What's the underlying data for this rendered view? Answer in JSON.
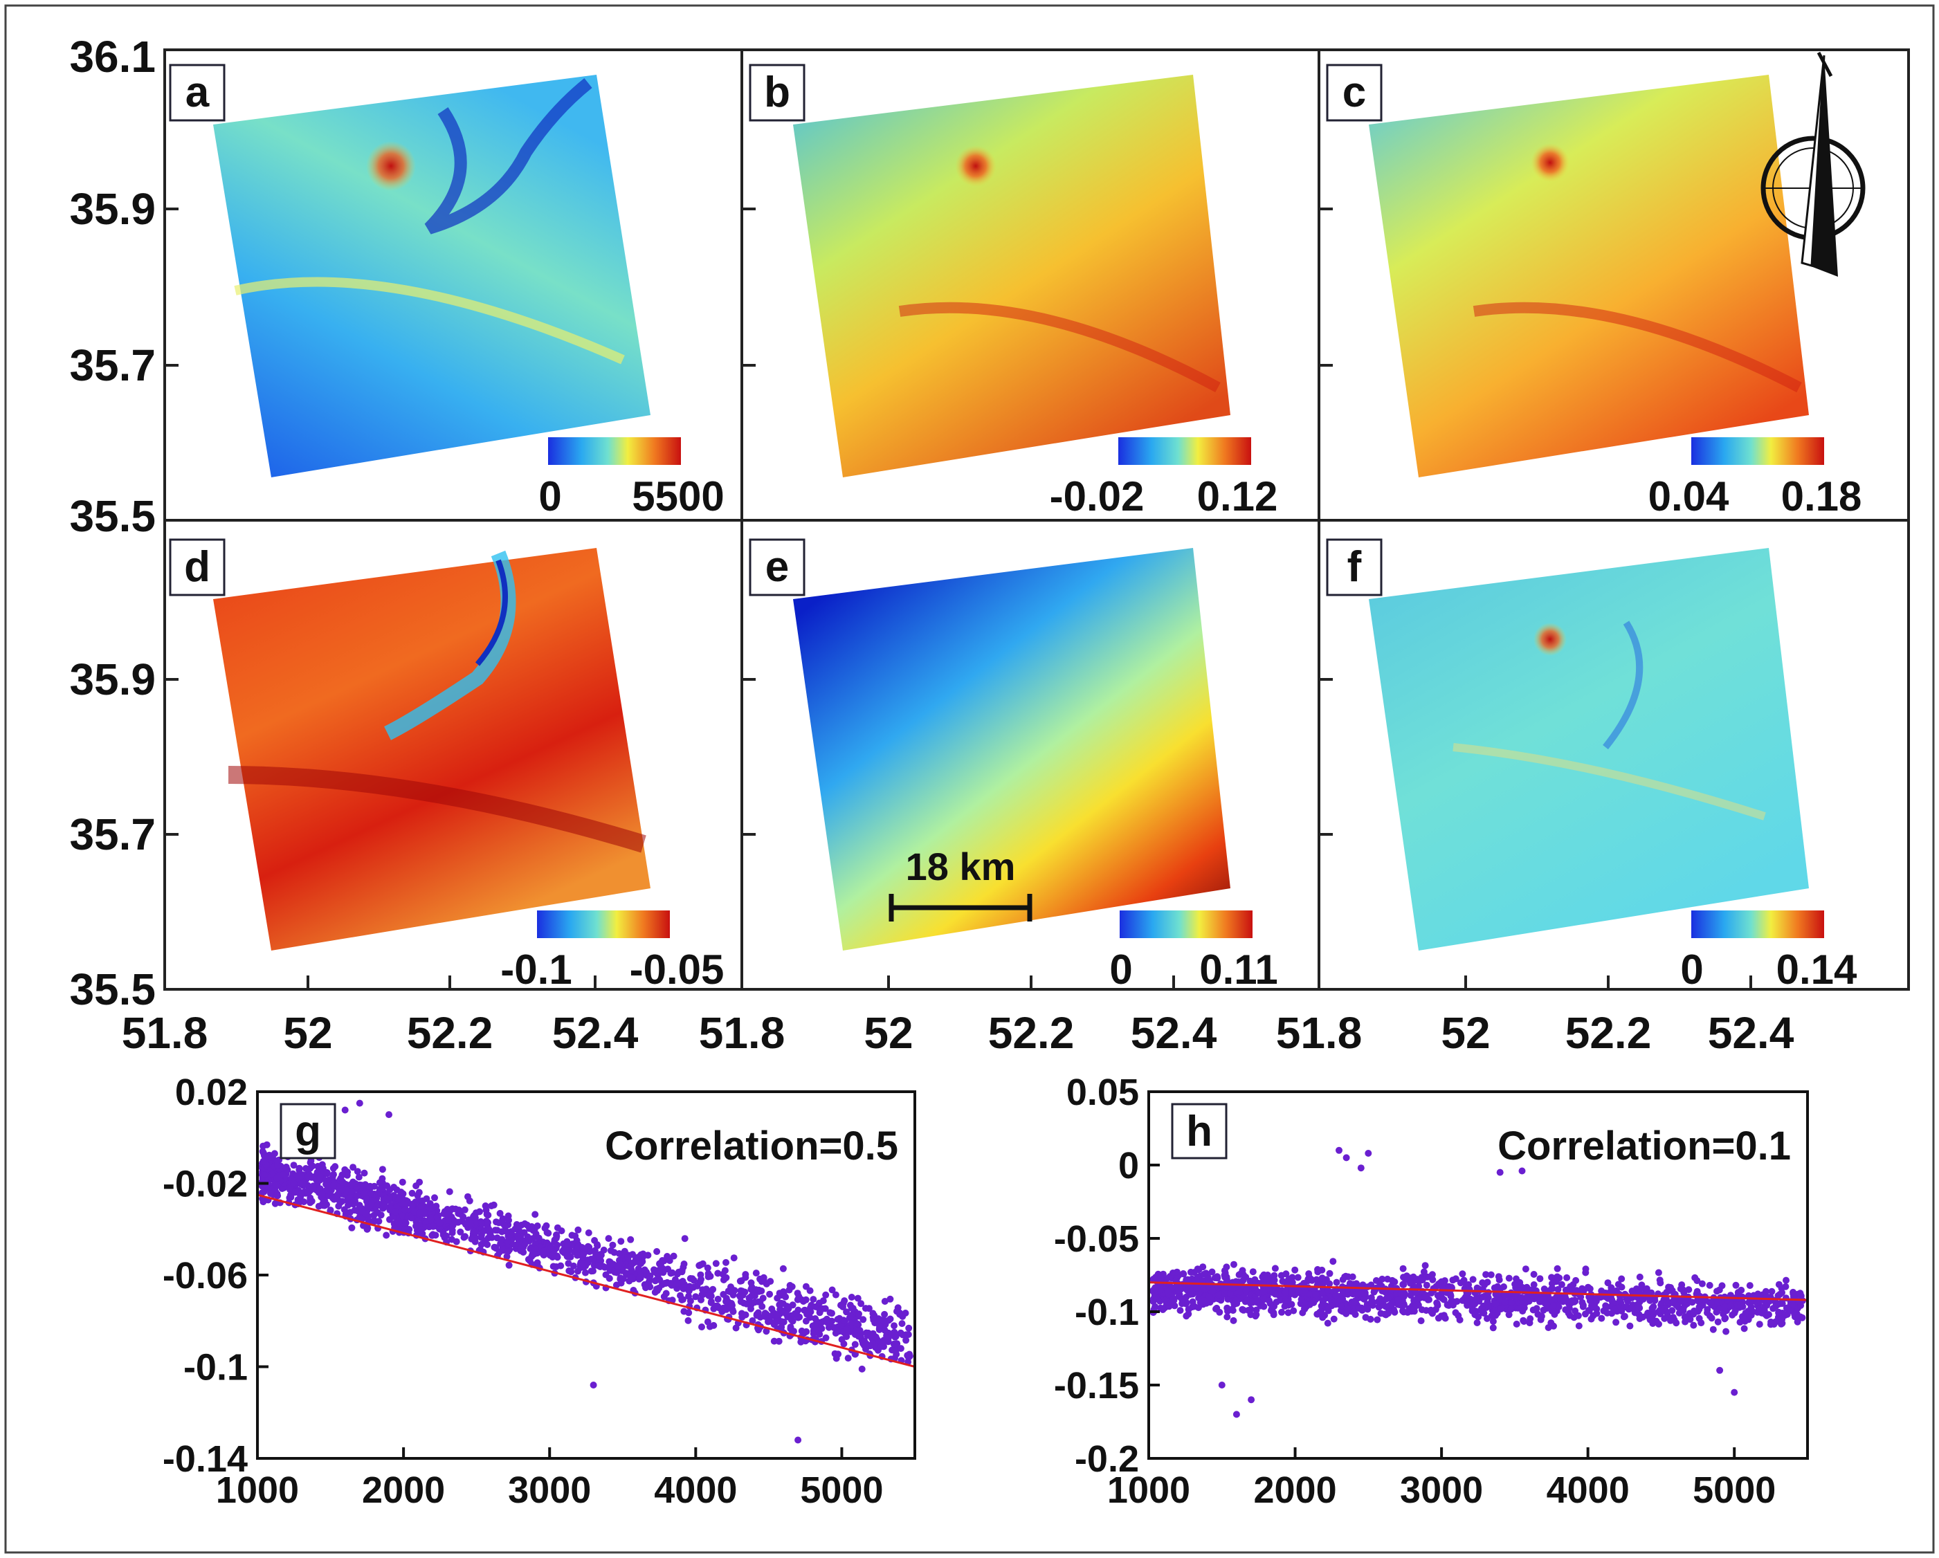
{
  "chart_data": [
    {
      "type": "heatmap",
      "panel_label": "a",
      "colorbar": {
        "min_label": "0",
        "max_label": "5500",
        "min": 0,
        "max": 5500
      },
      "legend": "bottom-right",
      "colors": {
        "low": "#1a4fe6",
        "high": "#d81818"
      }
    },
    {
      "type": "heatmap",
      "panel_label": "b",
      "colorbar": {
        "min_label": "-0.02",
        "max_label": "0.12",
        "min": -0.02,
        "max": 0.12
      },
      "legend": "bottom-right"
    },
    {
      "type": "heatmap",
      "panel_label": "c",
      "colorbar": {
        "min_label": "0.04",
        "max_label": "0.18",
        "min": 0.04,
        "max": 0.18
      },
      "legend": "bottom-right",
      "north_arrow": true
    },
    {
      "type": "heatmap",
      "panel_label": "d",
      "colorbar": {
        "min_label": "-0.1",
        "max_label": "-0.05",
        "min": -0.1,
        "max": -0.05
      },
      "legend": "bottom-right"
    },
    {
      "type": "heatmap",
      "panel_label": "e",
      "colorbar": {
        "min_label": "0",
        "max_label": "0.11",
        "min": 0,
        "max": 0.11
      },
      "legend": "bottom-right",
      "scale_bar": "18 km"
    },
    {
      "type": "heatmap",
      "panel_label": "f",
      "colorbar": {
        "min_label": "0",
        "max_label": "0.14",
        "min": 0,
        "max": 0.14
      },
      "legend": "bottom-right"
    },
    {
      "type": "scatter",
      "panel_label": "g",
      "annotation": "Correlation=0.5",
      "xlim": [
        1000,
        5500
      ],
      "ylim": [
        -0.14,
        0.02
      ],
      "x_ticks": [
        "1000",
        "2000",
        "3000",
        "4000",
        "5000"
      ],
      "y_ticks": [
        "0.02",
        "-0.02",
        "-0.06",
        "-0.1",
        "-0.14"
      ],
      "fit_line": {
        "x": [
          1000,
          5500
        ],
        "y": [
          -0.025,
          -0.1
        ]
      },
      "point_color": "#6a1fd0",
      "line_color": "#e02020"
    },
    {
      "type": "scatter",
      "panel_label": "h",
      "annotation": "Correlation=0.1",
      "xlim": [
        1000,
        5500
      ],
      "ylim": [
        -0.2,
        0.05
      ],
      "x_ticks": [
        "1000",
        "2000",
        "3000",
        "4000",
        "5000"
      ],
      "y_ticks": [
        "0.05",
        "0",
        "-0.05",
        "-0.1",
        "-0.15",
        "-0.2"
      ],
      "fit_line": {
        "x": [
          1000,
          5500
        ],
        "y": [
          -0.08,
          -0.092
        ]
      },
      "point_color": "#6a1fd0",
      "line_color": "#e02020"
    }
  ],
  "map_axes": {
    "lat_ticks": [
      "36.1",
      "35.9",
      "35.7",
      "35.5"
    ],
    "lat_ticks_row2": [
      "35.9",
      "35.7",
      "35.5"
    ],
    "lon_ticks": [
      "51.8",
      "52",
      "52.2",
      "52.4"
    ]
  }
}
